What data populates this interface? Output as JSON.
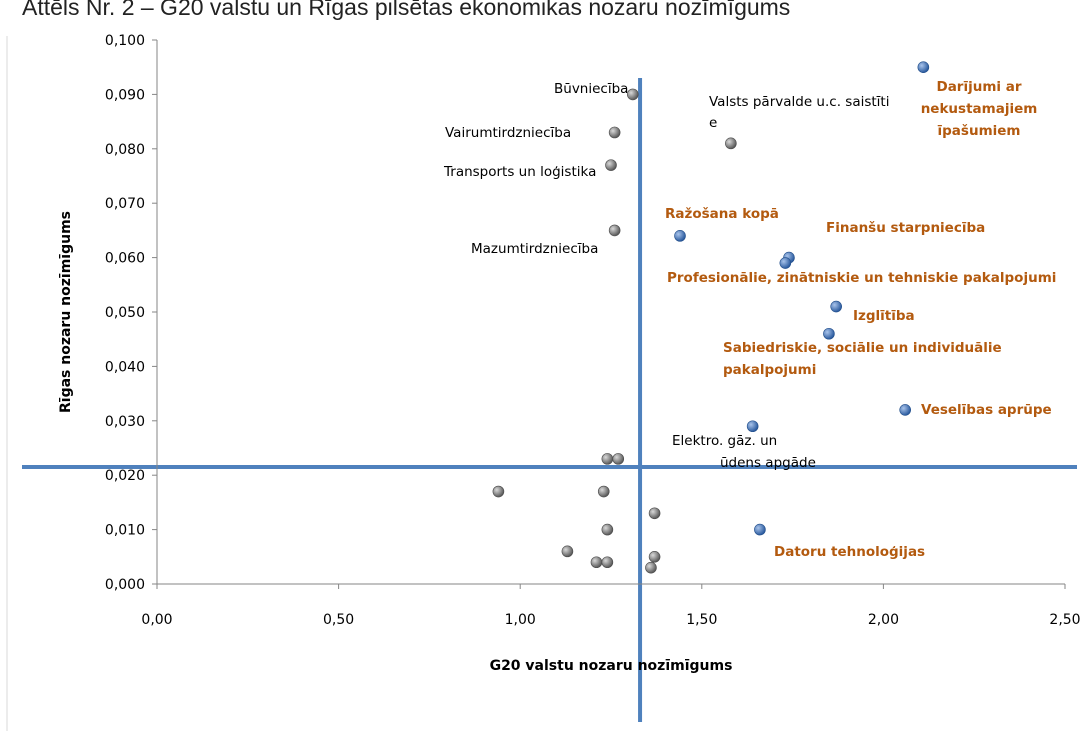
{
  "figure": {
    "title": "Attēls Nr. 2 – G20 valstu un Rīgas pilsētas ekonomikas nozaru nozīmīgums"
  },
  "chart_data": {
    "type": "scatter",
    "xlabel": "G20 valstu nozaru nozīmīgums",
    "ylabel": "Rīgas nozaru nozīmīgums",
    "xlim": [
      0,
      2.5
    ],
    "ylim": [
      0,
      0.1
    ],
    "x_ticks": [
      "0,00",
      "0,50",
      "1,00",
      "1,50",
      "2,00",
      "2,50"
    ],
    "y_ticks": [
      "0,000",
      "0,010",
      "0,020",
      "0,030",
      "0,040",
      "0,050",
      "0,060",
      "0,070",
      "0,080",
      "0,090",
      "0,100"
    ],
    "grid": false,
    "legend": "none",
    "reference_lines": {
      "x": 1.33,
      "y": 0.0215
    },
    "colors": {
      "gray": "#7f7f7f",
      "blue": "#3f6fb5",
      "highlight_label": "#b35a0f",
      "ref_line": "#4f81bd"
    },
    "points": [
      {
        "x": 1.31,
        "y": 0.09,
        "group": "gray",
        "label": "Būvniecība"
      },
      {
        "x": 1.26,
        "y": 0.083,
        "group": "gray",
        "label": "Vairumtirdzniecība"
      },
      {
        "x": 1.25,
        "y": 0.077,
        "group": "gray",
        "label": "Transports un loģistika"
      },
      {
        "x": 1.26,
        "y": 0.065,
        "group": "gray",
        "label": "Mazumtirdzniecība"
      },
      {
        "x": 1.58,
        "y": 0.081,
        "group": "gray",
        "label": "Valsts pārvalde u.c. saistītie"
      },
      {
        "x": 1.64,
        "y": 0.029,
        "group": "blue",
        "label": "Elektro. gāz. un ūdens apgāde"
      },
      {
        "x": 2.11,
        "y": 0.095,
        "group": "blue",
        "label": "Darījumi ar nekustamajiem īpašumiem"
      },
      {
        "x": 1.44,
        "y": 0.064,
        "group": "blue",
        "label": "Ražošana kopā"
      },
      {
        "x": 1.74,
        "y": 0.06,
        "group": "blue",
        "label": "Finanšu starpniecība"
      },
      {
        "x": 1.73,
        "y": 0.059,
        "group": "blue",
        "label": "Profesionālie, zinātniskie un tehniskie pakalpojumi"
      },
      {
        "x": 1.87,
        "y": 0.051,
        "group": "blue",
        "label": "Izglītība"
      },
      {
        "x": 1.85,
        "y": 0.046,
        "group": "blue",
        "label": "Sabiedriskie, sociālie un individuālie pakalpojumi"
      },
      {
        "x": 2.06,
        "y": 0.032,
        "group": "blue",
        "label": "Veselības aprūpe"
      },
      {
        "x": 1.66,
        "y": 0.01,
        "group": "blue",
        "label": "Datoru tehnoloģijas"
      },
      {
        "x": 1.24,
        "y": 0.023,
        "group": "gray"
      },
      {
        "x": 1.27,
        "y": 0.023,
        "group": "gray"
      },
      {
        "x": 0.94,
        "y": 0.017,
        "group": "gray"
      },
      {
        "x": 1.23,
        "y": 0.017,
        "group": "gray"
      },
      {
        "x": 1.37,
        "y": 0.013,
        "group": "gray"
      },
      {
        "x": 1.24,
        "y": 0.01,
        "group": "gray"
      },
      {
        "x": 1.13,
        "y": 0.006,
        "group": "gray"
      },
      {
        "x": 1.21,
        "y": 0.004,
        "group": "gray"
      },
      {
        "x": 1.24,
        "y": 0.004,
        "group": "gray"
      },
      {
        "x": 1.37,
        "y": 0.005,
        "group": "gray"
      },
      {
        "x": 1.36,
        "y": 0.003,
        "group": "gray"
      }
    ]
  }
}
